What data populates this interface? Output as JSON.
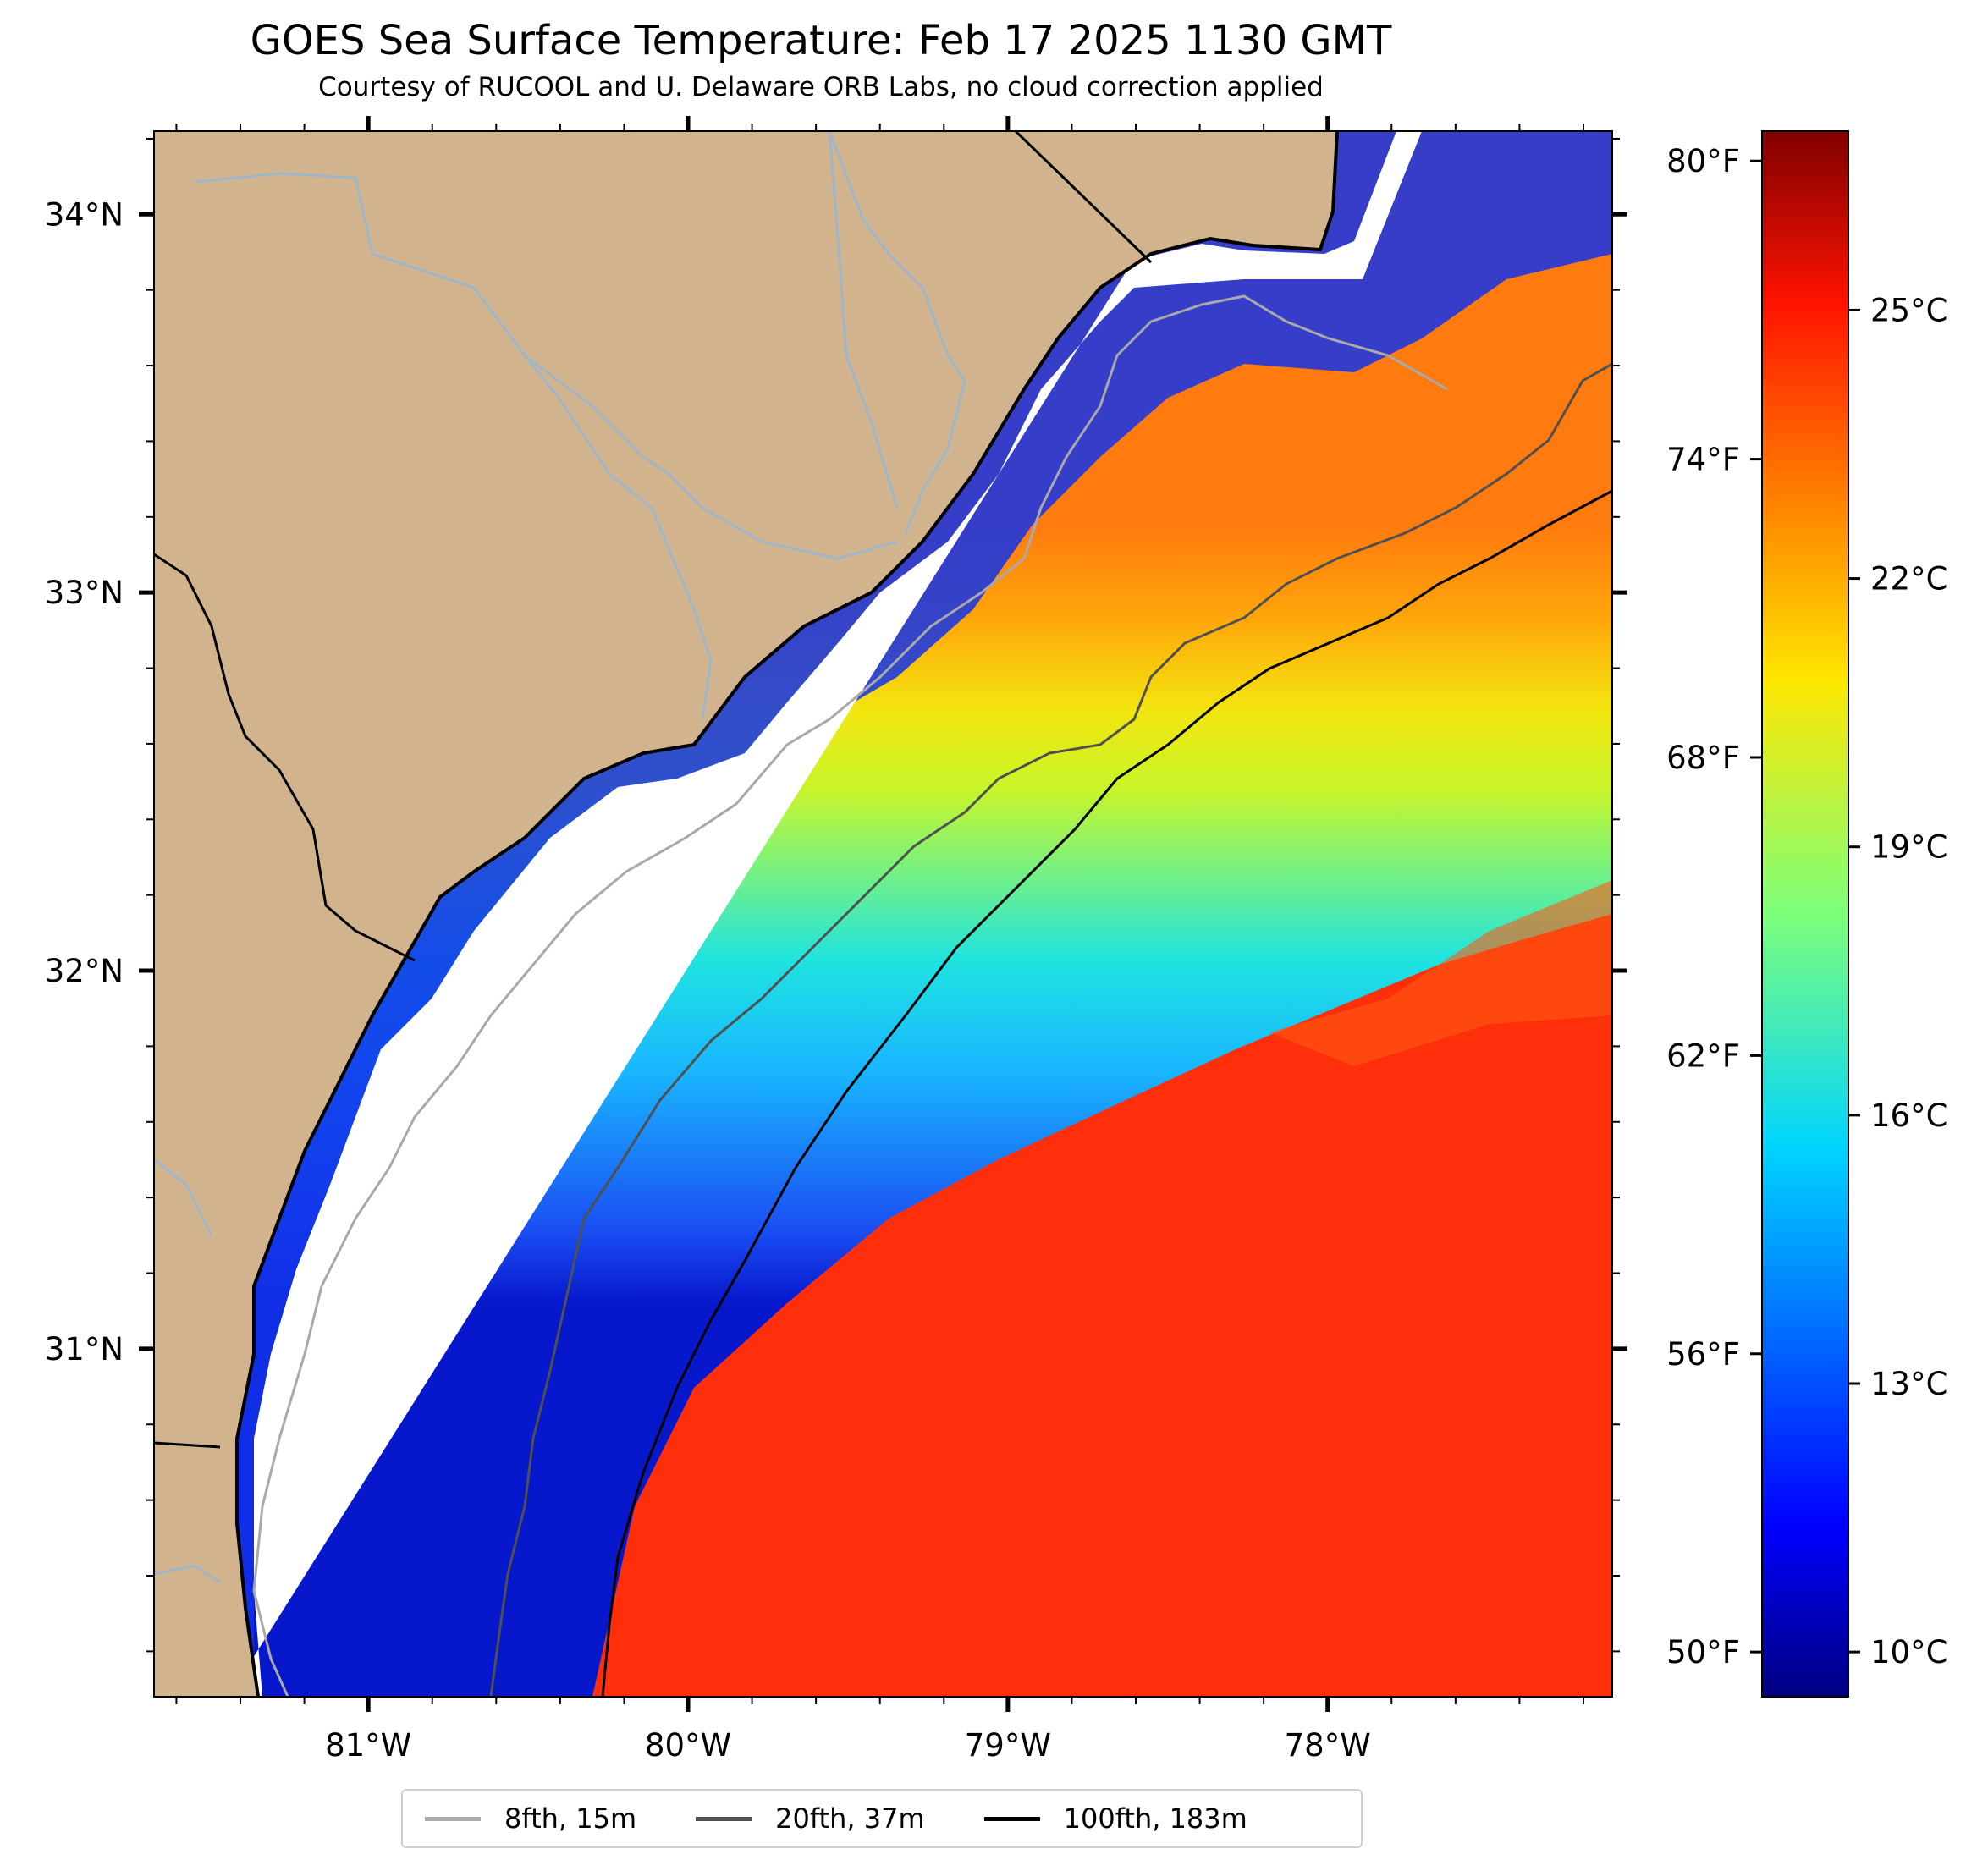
{
  "title": "GOES Sea Surface Temperature: Feb 17 2025 1130 GMT",
  "subtitle": "Courtesy of RUCOOL and U. Delaware ORB Labs, no cloud correction applied",
  "map": {
    "extent": {
      "lon_min": -81.67,
      "lon_max": -77.11,
      "lat_min": 30.08,
      "lat_max": 34.22
    },
    "land_color": "#d1b38e",
    "gap_color": "#ffffff",
    "lat_ticks": [
      {
        "value": 34,
        "label": "34°N"
      },
      {
        "value": 33,
        "label": "33°N"
      },
      {
        "value": 32,
        "label": "32°N"
      },
      {
        "value": 31,
        "label": "31°N"
      }
    ],
    "lon_ticks": [
      {
        "value": -81,
        "label": "81°W"
      },
      {
        "value": -80,
        "label": "80°W"
      },
      {
        "value": -79,
        "label": "79°W"
      },
      {
        "value": -78,
        "label": "78°W"
      }
    ]
  },
  "colorbar": {
    "min_c": 9.5,
    "max_c": 27.0,
    "celsius_ticks": [
      {
        "value": 10,
        "label": "10°C"
      },
      {
        "value": 13,
        "label": "13°C"
      },
      {
        "value": 16,
        "label": "16°C"
      },
      {
        "value": 19,
        "label": "19°C"
      },
      {
        "value": 22,
        "label": "22°C"
      },
      {
        "value": 25,
        "label": "25°C"
      }
    ],
    "fahrenheit_ticks": [
      {
        "value": 50,
        "label": "50°F"
      },
      {
        "value": 56,
        "label": "56°F"
      },
      {
        "value": 62,
        "label": "62°F"
      },
      {
        "value": 68,
        "label": "68°F"
      },
      {
        "value": 74,
        "label": "74°F"
      },
      {
        "value": 80,
        "label": "80°F"
      }
    ]
  },
  "legend": [
    {
      "label": "8fth, 15m",
      "color": "#a9a9a9"
    },
    {
      "label": "20fth, 37m",
      "color": "#505050"
    },
    {
      "label": "100fth, 183m",
      "color": "#000000"
    }
  ]
}
